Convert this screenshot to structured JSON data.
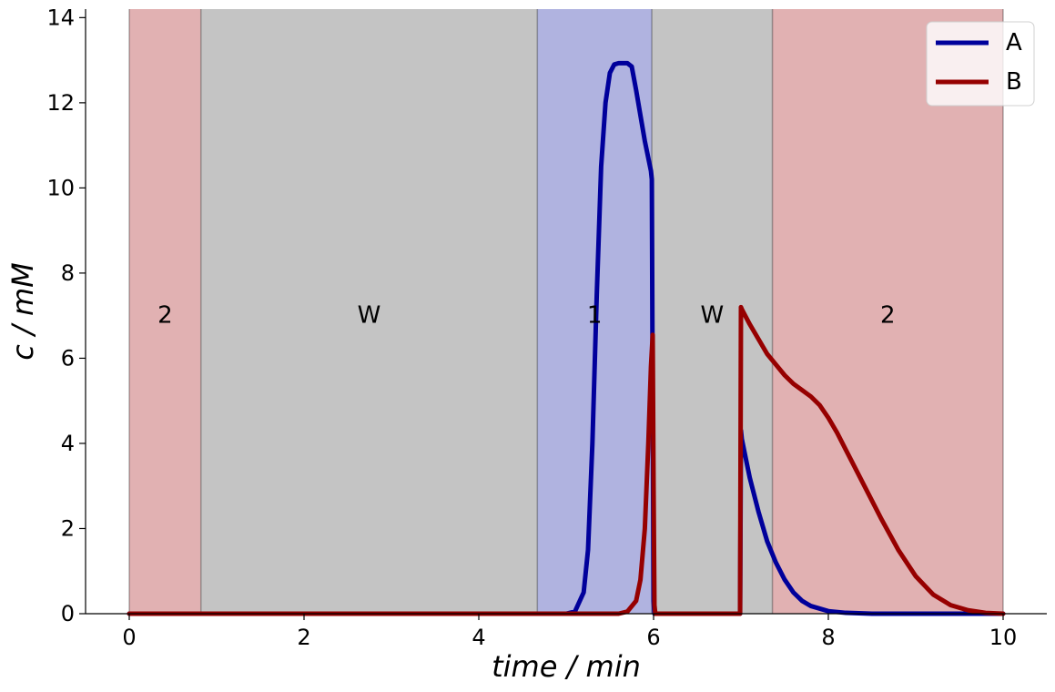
{
  "chart_data": {
    "type": "line",
    "xlabel": "time / min",
    "ylabel": "c / mM",
    "xlim": [
      -0.5,
      10.5
    ],
    "ylim": [
      0,
      14.2
    ],
    "xticks": [
      0,
      2,
      4,
      6,
      8,
      10
    ],
    "yticks": [
      0,
      2,
      4,
      6,
      8,
      10,
      12,
      14
    ],
    "grid": false,
    "legend": "top-right",
    "regions": [
      {
        "label": "2",
        "x0": 0.0,
        "x1": 0.82,
        "color": "#e1b1b2"
      },
      {
        "label": "W",
        "x0": 0.82,
        "x1": 4.67,
        "color": "#c4c4c4"
      },
      {
        "label": "1",
        "x0": 4.67,
        "x1": 5.98,
        "color": "#b0b3e0"
      },
      {
        "label": "W",
        "x0": 5.98,
        "x1": 7.36,
        "color": "#c4c4c4"
      },
      {
        "label": "2",
        "x0": 7.36,
        "x1": 10.0,
        "color": "#e1b1b2"
      }
    ],
    "series": [
      {
        "name": "A",
        "color": "#00009b",
        "x": [
          0,
          5.0,
          5.1,
          5.2,
          5.25,
          5.3,
          5.35,
          5.4,
          5.45,
          5.5,
          5.55,
          5.6,
          5.7,
          5.75,
          5.8,
          5.85,
          5.9,
          5.95,
          5.97,
          5.98,
          5.99,
          6.0,
          6.01,
          6.02,
          6.98,
          6.99,
          7.0,
          7.01,
          7.1,
          7.2,
          7.3,
          7.4,
          7.5,
          7.6,
          7.7,
          7.8,
          8.0,
          8.2,
          8.5,
          9.0,
          10.0
        ],
        "y": [
          0,
          0,
          0.05,
          0.5,
          1.5,
          4.0,
          7.5,
          10.5,
          12.0,
          12.7,
          12.9,
          12.93,
          12.93,
          12.85,
          12.3,
          11.7,
          11.1,
          10.6,
          10.4,
          10.2,
          5.0,
          0.3,
          0,
          0,
          0,
          0,
          4.3,
          4.1,
          3.2,
          2.4,
          1.7,
          1.2,
          0.8,
          0.5,
          0.3,
          0.18,
          0.06,
          0.02,
          0,
          0,
          0
        ]
      },
      {
        "name": "B",
        "color": "#960000",
        "x": [
          0,
          5.6,
          5.7,
          5.8,
          5.85,
          5.9,
          5.94,
          5.97,
          5.99,
          6.0,
          6.01,
          6.02,
          6.98,
          6.99,
          7.0,
          7.01,
          7.1,
          7.2,
          7.3,
          7.4,
          7.5,
          7.6,
          7.7,
          7.8,
          7.9,
          8.0,
          8.1,
          8.2,
          8.4,
          8.6,
          8.8,
          9.0,
          9.2,
          9.4,
          9.6,
          9.8,
          10.0
        ],
        "y": [
          0,
          0,
          0.05,
          0.3,
          0.8,
          2.0,
          4.0,
          5.8,
          6.55,
          3.0,
          0.2,
          0,
          0,
          0,
          7.2,
          7.15,
          6.8,
          6.45,
          6.1,
          5.85,
          5.6,
          5.4,
          5.25,
          5.1,
          4.9,
          4.6,
          4.25,
          3.85,
          3.05,
          2.25,
          1.5,
          0.88,
          0.45,
          0.2,
          0.08,
          0.02,
          0
        ]
      }
    ]
  }
}
